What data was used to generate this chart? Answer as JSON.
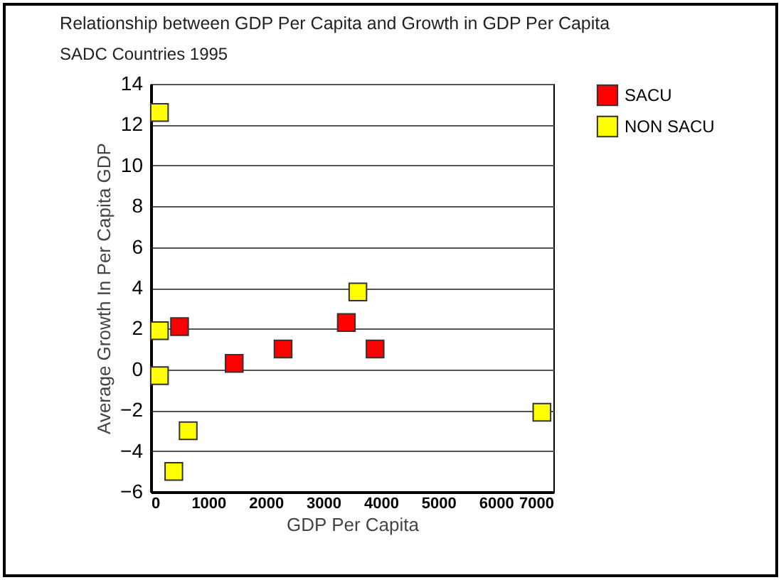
{
  "chart_data": {
    "type": "scatter",
    "title": "Relationship between GDP Per Capita and Growth in GDP Per Capita",
    "subtitle": "SADC Countries 1995",
    "xlabel": "GDP Per Capita",
    "ylabel": "Average Growth In Per Capita GDP",
    "series": [
      {
        "name": "SACU",
        "color": "#ff0000",
        "x": [
          500,
          1450,
          2300,
          3400,
          3900
        ],
        "values": [
          2.1,
          0.3,
          1.0,
          2.3,
          1.0
        ]
      },
      {
        "name": "NON SACU",
        "color": "#ffff00",
        "x": [
          150,
          150,
          150,
          400,
          650,
          3600,
          6800
        ],
        "values": [
          12.6,
          1.9,
          -0.3,
          -5.0,
          -3.0,
          3.8,
          -2.1
        ]
      }
    ],
    "xlim": [
      0,
      7000
    ],
    "xticks": [
      0,
      1000,
      2000,
      3000,
      4000,
      5000,
      6000,
      7000
    ],
    "ylim": [
      -6,
      14
    ],
    "yticks": [
      -6,
      -4,
      -2,
      0,
      2,
      4,
      6,
      8,
      10,
      12,
      14
    ],
    "grid": "y",
    "legend": "right",
    "marker": "square"
  }
}
